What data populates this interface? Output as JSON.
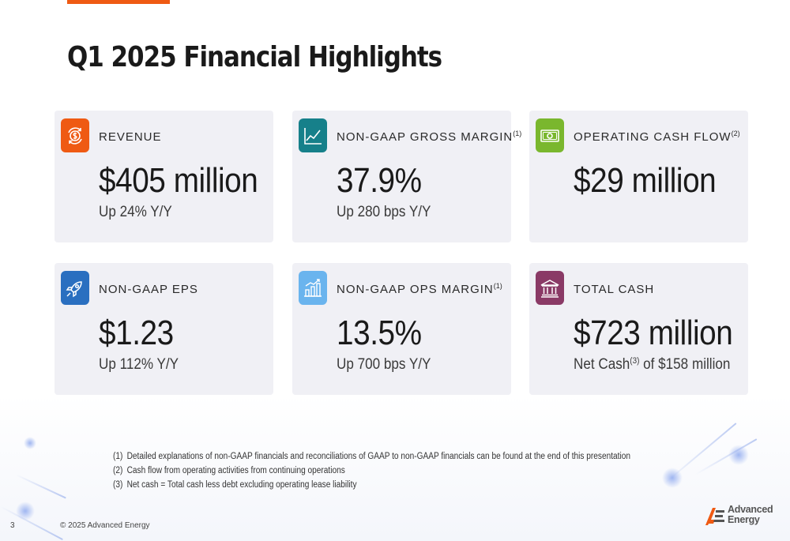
{
  "slide": {
    "title": "Q1 2025 Financial Highlights",
    "page_number": "3",
    "copyright": "© 2025 Advanced Energy",
    "accent_color": "#ef5a13"
  },
  "cards": [
    {
      "label": "REVENUE",
      "label_sup": "",
      "value": "$405 million",
      "sub_prefix": "Up 24% Y/Y",
      "sub_sup": "",
      "sub_suffix": "",
      "icon": "dollar-cycle-icon",
      "icon_color": "#ef5a13"
    },
    {
      "label": "NON-GAAP GROSS MARGIN",
      "label_sup": "(1)",
      "value": "37.9%",
      "sub_prefix": "Up 280 bps Y/Y",
      "sub_sup": "",
      "sub_suffix": "",
      "icon": "line-chart-icon",
      "icon_color": "#16808a"
    },
    {
      "label": "OPERATING CASH FLOW",
      "label_sup": "(2)",
      "value": "$29 million",
      "sub_prefix": "",
      "sub_sup": "",
      "sub_suffix": "",
      "icon": "banknote-icon",
      "icon_color": "#7ab72e"
    },
    {
      "label": "NON-GAAP EPS",
      "label_sup": "",
      "value": "$1.23",
      "sub_prefix": "Up 112% Y/Y",
      "sub_sup": "",
      "sub_suffix": "",
      "icon": "rocket-icon",
      "icon_color": "#2a6fc0"
    },
    {
      "label": "NON-GAAP OPS MARGIN",
      "label_sup": "(1)",
      "value": "13.5%",
      "sub_prefix": "Up 700 bps Y/Y",
      "sub_sup": "",
      "sub_suffix": "",
      "icon": "bar-chart-icon",
      "icon_color": "#6ab4ee"
    },
    {
      "label": "TOTAL CASH",
      "label_sup": "",
      "value": "$723 million",
      "sub_prefix": "Net Cash",
      "sub_sup": "(3)",
      "sub_suffix": " of $158 million",
      "icon": "bank-icon",
      "icon_color": "#8a3a66"
    }
  ],
  "footnotes": [
    {
      "num": "(1)",
      "text": "Detailed explanations of non-GAAP financials and reconciliations of GAAP to non-GAAP financials can be found at the end of this presentation"
    },
    {
      "num": "(2)",
      "text": "Cash flow from operating activities from continuing operations"
    },
    {
      "num": "(3)",
      "text": "Net cash = Total cash less debt excluding operating lease liability"
    }
  ],
  "logo": {
    "line1": "Advanced",
    "line2": "Energy"
  }
}
